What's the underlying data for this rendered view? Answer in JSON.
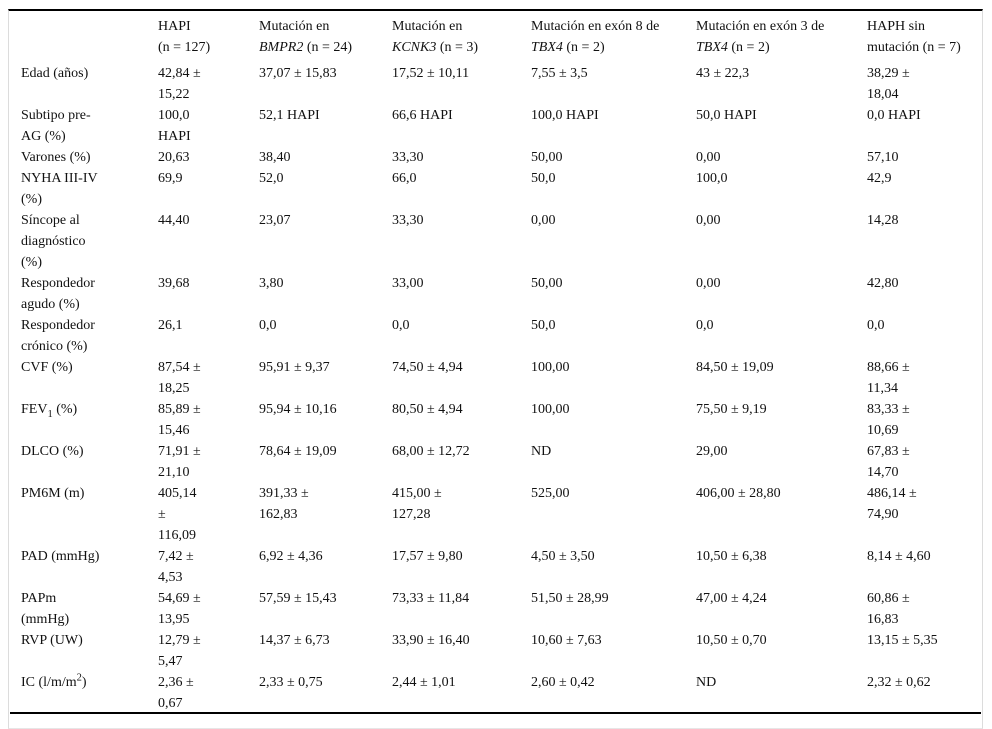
{
  "table": {
    "columns": [
      {
        "prefix": "",
        "gene": "",
        "suffix": ""
      },
      {
        "prefix": "HAPI\n(n = 127)",
        "gene": "",
        "suffix": ""
      },
      {
        "prefix": "Mutación en\n",
        "gene": "BMPR2",
        "suffix": " (n = 24)"
      },
      {
        "prefix": "Mutación en\n",
        "gene": "KCNK3",
        "suffix": " (n = 3)"
      },
      {
        "prefix": "Mutación en exón 8 de\n",
        "gene": "TBX4",
        "suffix": " (n = 2)"
      },
      {
        "prefix": "Mutación en exón 3 de\n",
        "gene": "TBX4",
        "suffix": " (n = 2)"
      },
      {
        "prefix": "HAPH sin\nmutación (n = 7)",
        "gene": "",
        "suffix": ""
      }
    ],
    "rows": [
      {
        "label": "Edad (años)",
        "values": [
          "42,84 ±\n15,22",
          "37,07 ± 15,83",
          "17,52 ± 10,11",
          "7,55 ± 3,5",
          "43 ± 22,3",
          "38,29 ±\n18,04"
        ]
      },
      {
        "label": "Subtipo pre-\nAG (%)",
        "values": [
          "100,0\nHAPI",
          "52,1 HAPI",
          "66,6 HAPI",
          "100,0 HAPI",
          "50,0 HAPI",
          "0,0 HAPI"
        ]
      },
      {
        "label": "Varones (%)",
        "values": [
          "20,63",
          "38,40",
          "33,30",
          "50,00",
          "0,00",
          "57,10"
        ]
      },
      {
        "label": "NYHA III-IV\n(%)",
        "values": [
          "69,9",
          "52,0",
          "66,0",
          "50,0",
          "100,0",
          "42,9"
        ]
      },
      {
        "label": "Síncope al\ndiagnóstico\n(%)",
        "values": [
          "44,40",
          "23,07",
          "33,30",
          "0,00",
          "0,00",
          "14,28"
        ]
      },
      {
        "label": "Respondedor\nagudo (%)",
        "values": [
          "39,68",
          "3,80",
          "33,00",
          "50,00",
          "0,00",
          "42,80"
        ]
      },
      {
        "label": "Respondedor\ncrónico (%)",
        "values": [
          "26,1",
          "0,0",
          "0,0",
          "50,0",
          "0,0",
          "0,0"
        ]
      },
      {
        "label": "CVF (%)",
        "values": [
          "87,54 ±\n18,25",
          "95,91 ± 9,37",
          "74,50 ± 4,94",
          "100,00",
          "84,50 ± 19,09",
          "88,66 ±\n11,34"
        ]
      },
      {
        "label_segments": [
          {
            "t": "FEV"
          },
          {
            "t": "1",
            "style": "sub"
          },
          {
            "t": " (%)"
          }
        ],
        "values": [
          "85,89 ±\n15,46",
          "95,94 ± 10,16",
          "80,50 ± 4,94",
          "100,00",
          "75,50 ± 9,19",
          "83,33 ±\n10,69"
        ]
      },
      {
        "label": "DLCO (%)",
        "values": [
          "71,91 ±\n21,10",
          "78,64 ± 19,09",
          "68,00 ± 12,72",
          "ND",
          "29,00",
          "67,83 ±\n14,70"
        ]
      },
      {
        "label": "PM6M (m)",
        "values": [
          "405,14\n±\n116,09",
          "391,33 ±\n162,83",
          "415,00 ±\n127,28",
          "525,00",
          "406,00 ± 28,80",
          "486,14 ±\n74,90"
        ]
      },
      {
        "label": "PAD (mmHg)",
        "values": [
          "7,42 ±\n4,53",
          "6,92 ± 4,36",
          "17,57 ± 9,80",
          "4,50 ± 3,50",
          "10,50 ± 6,38",
          "8,14 ± 4,60"
        ]
      },
      {
        "label": "PAPm\n(mmHg)",
        "values": [
          "54,69 ±\n13,95",
          "57,59 ± 15,43",
          "73,33 ± 11,84",
          "51,50 ± 28,99",
          "47,00 ± 4,24",
          "60,86 ±\n16,83"
        ]
      },
      {
        "label": "RVP (UW)",
        "values": [
          "12,79 ±\n5,47",
          "14,37 ± 6,73",
          "33,90 ± 16,40",
          "10,60 ± 7,63",
          "10,50 ± 0,70",
          "13,15 ± 5,35"
        ]
      },
      {
        "label_segments": [
          {
            "t": "IC (l/m/m"
          },
          {
            "t": "2",
            "style": "sup"
          },
          {
            "t": ")"
          }
        ],
        "values": [
          "2,36 ±\n0,67",
          "2,33 ± 0,75",
          "2,44 ± 1,01",
          "2,60 ± 0,42",
          "ND",
          "2,32 ± 0,62"
        ]
      }
    ]
  }
}
